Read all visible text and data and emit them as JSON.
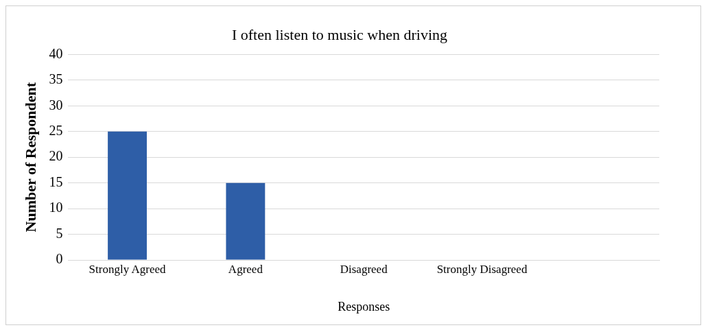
{
  "chart_data": {
    "type": "bar",
    "title": "I often listen to music when driving",
    "xlabel": "Responses",
    "ylabel": "Number of Respondent",
    "categories": [
      "Strongly Agreed",
      "Agreed",
      "Disagreed",
      "Strongly Disagreed",
      null
    ],
    "values": [
      25,
      15,
      0,
      0,
      null
    ],
    "color": "#2e5ea7",
    "ylim": [
      0,
      40
    ],
    "yticks": [
      0,
      5,
      10,
      15,
      20,
      25,
      30,
      35,
      40
    ],
    "grid": "y"
  }
}
